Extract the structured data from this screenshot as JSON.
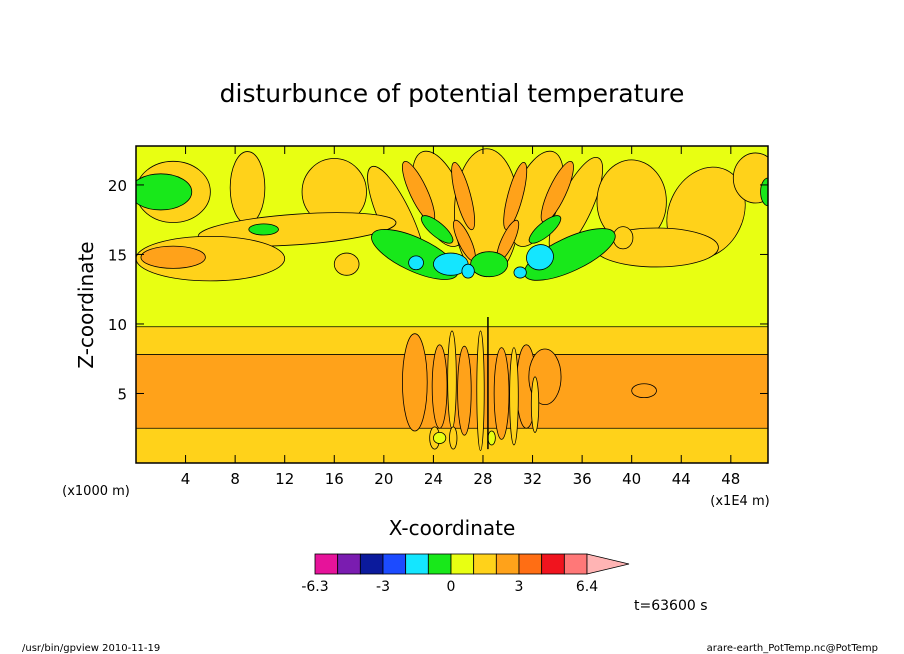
{
  "chart_data": {
    "type": "heatmap",
    "title": "disturbunce of potential temperature",
    "xlabel": "X-coordinate",
    "ylabel": "Z-coordinate",
    "x_unit_left": "(x1000 m)",
    "x_unit_right": "(x1E4 m)",
    "xlim": [
      0,
      51
    ],
    "ylim": [
      0,
      22.8
    ],
    "x_ticks": [
      4,
      8,
      12,
      16,
      20,
      24,
      28,
      32,
      36,
      40,
      44,
      48
    ],
    "y_ticks": [
      5,
      10,
      15,
      20
    ],
    "colorbar": {
      "levels": [
        -6.3,
        -5.3,
        -4.2,
        -3,
        -2,
        -1,
        0,
        1,
        2,
        3,
        4.2,
        5.3,
        6.4
      ],
      "tick_labels": [
        "-6.3",
        "-3",
        "0",
        "3",
        "6.4"
      ],
      "colors": [
        "#e6139a",
        "#7a1cb0",
        "#0b1a9c",
        "#1c4bff",
        "#14e6ff",
        "#18e81a",
        "#e8ff12",
        "#ffd21a",
        "#ffa21a",
        "#ff6e14",
        "#f0141e",
        "#ff7878",
        "#ffb4b4"
      ]
    },
    "time_label": "t=63600 s",
    "bands": [
      {
        "name": "lower-yellow",
        "level": 1,
        "z": [
          0,
          2.5
        ]
      },
      {
        "name": "lower-orange",
        "level": 2,
        "z": [
          2.5,
          7.8
        ]
      },
      {
        "name": "upper-yellow",
        "level": 1,
        "z": [
          7.8,
          9.8
        ]
      },
      {
        "name": "tropopause-green",
        "level": 0,
        "z": [
          9.8,
          22.8
        ]
      }
    ]
  },
  "footer": {
    "left": "/usr/bin/gpview   2010-11-19",
    "right": "arare-earth_PotTemp.nc@PotTemp"
  },
  "colors": {
    "frame": "#000000",
    "background": "#ffffff"
  }
}
